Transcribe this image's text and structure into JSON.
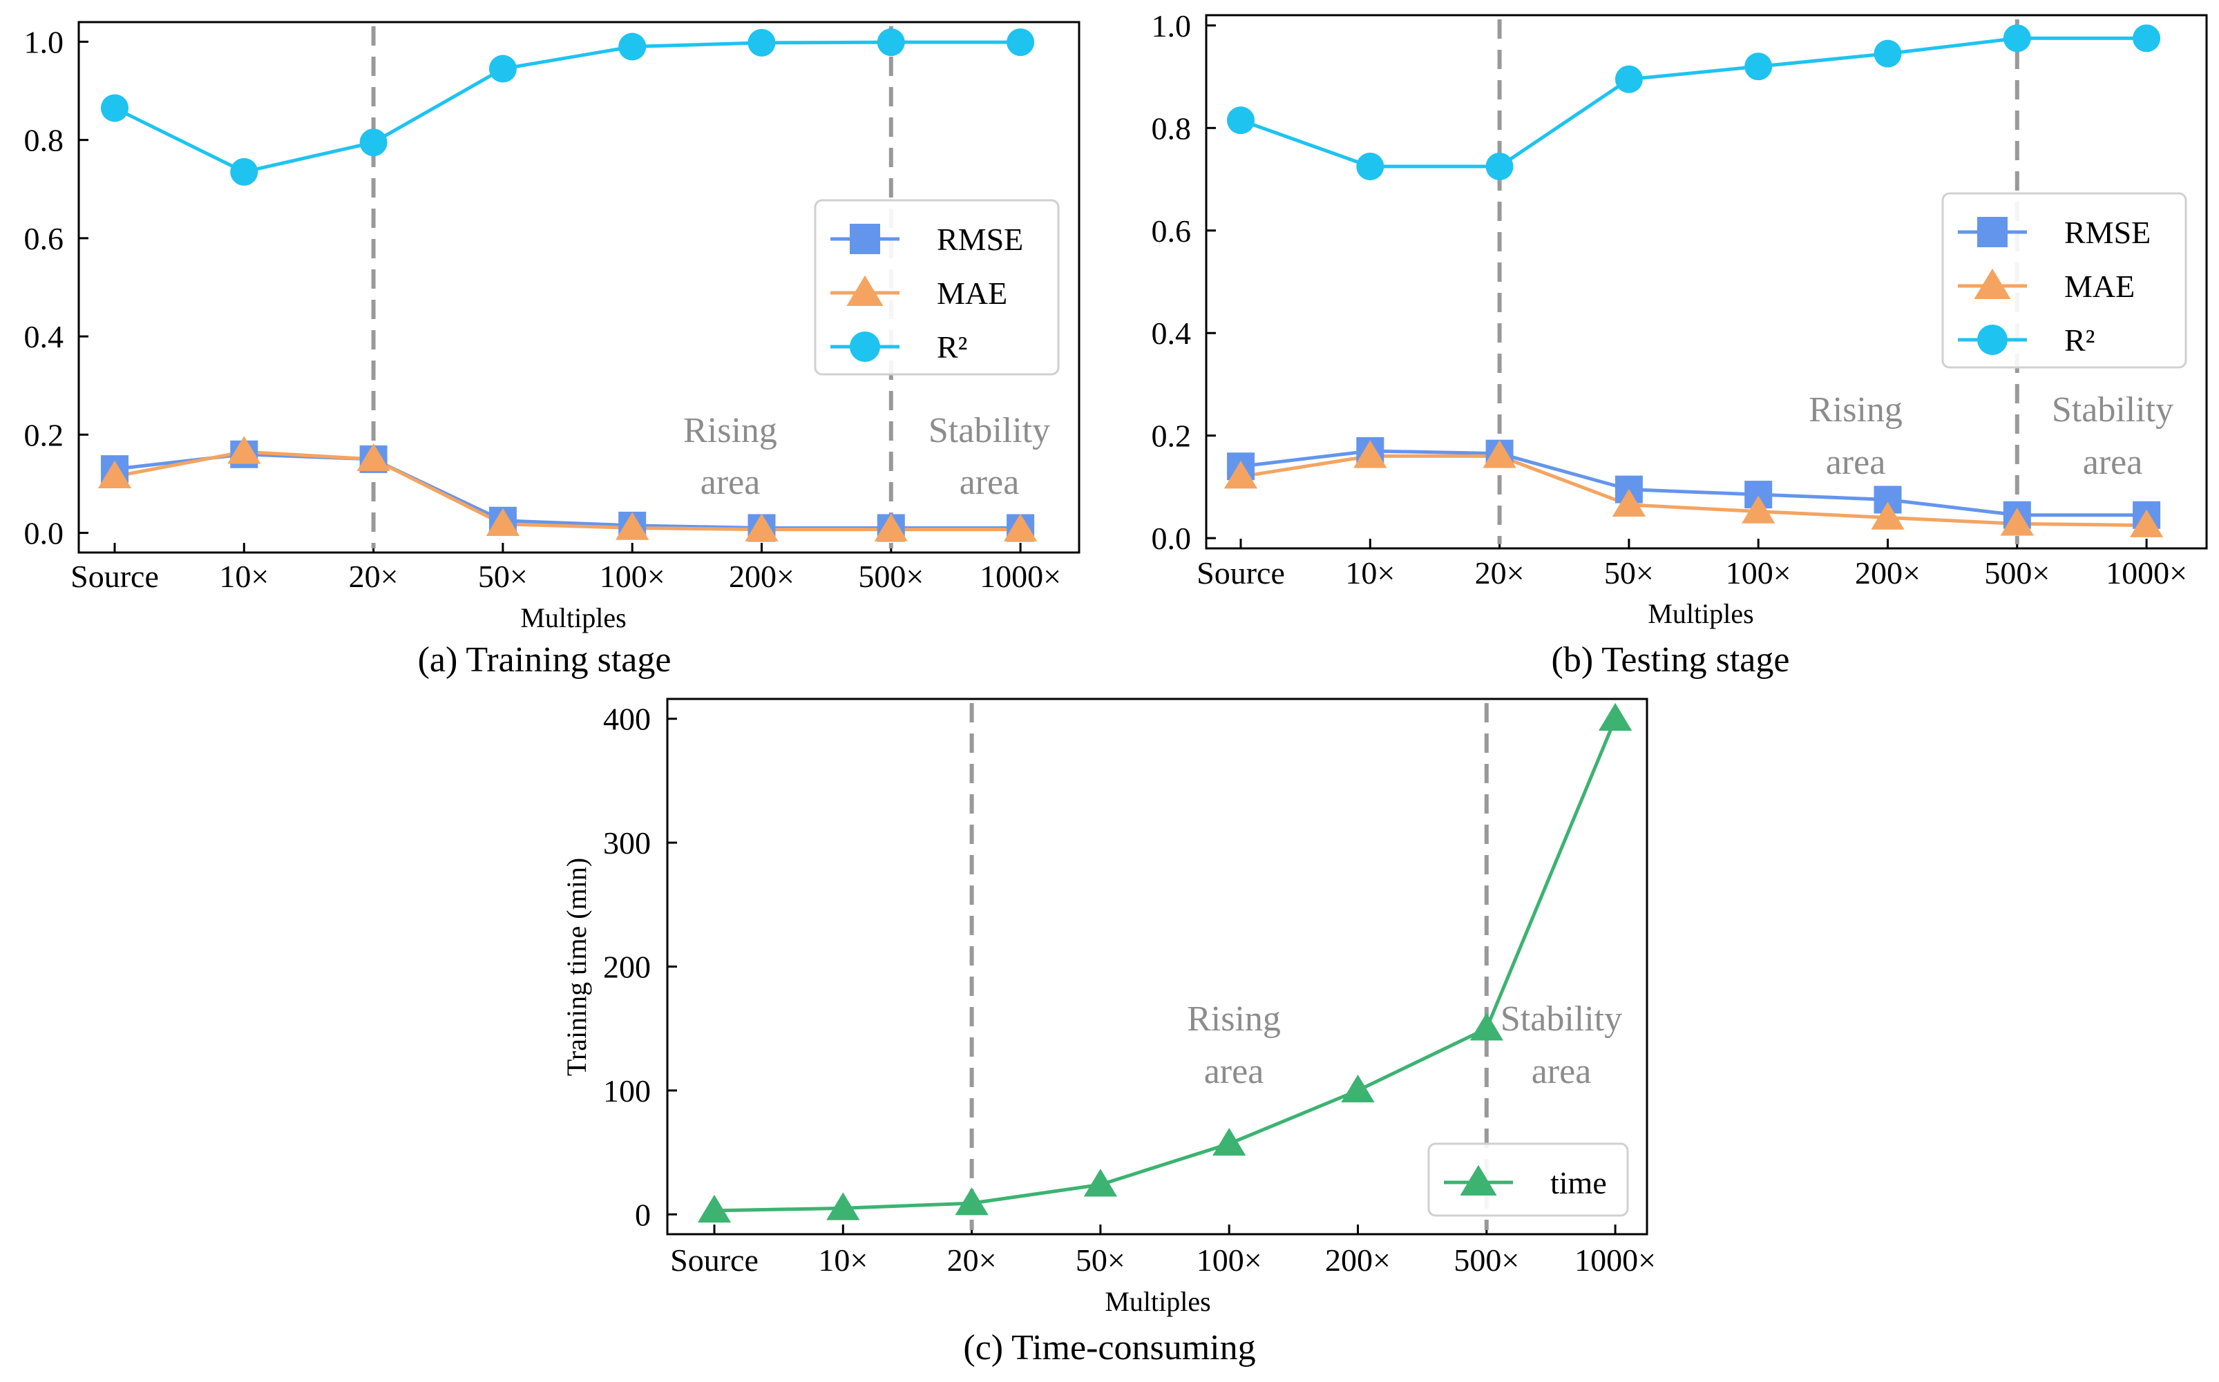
{
  "colors": {
    "rmse": "#6495ed",
    "mae": "#f4a460",
    "r2": "#1ec3f0",
    "time": "#3cb371",
    "divider": "#999999",
    "area_text": "#8c8c8c"
  },
  "chart_data": [
    {
      "id": "a",
      "type": "line",
      "caption": "(a) Training stage",
      "xlabel": "Multiples",
      "ylabel": "",
      "categories": [
        "Source",
        "10×",
        "20×",
        "50×",
        "100×",
        "200×",
        "500×",
        "1000×"
      ],
      "ylim": [
        -0.04,
        1.04
      ],
      "yticks": [
        "0.0",
        "0.2",
        "0.4",
        "0.6",
        "0.8",
        "1.0"
      ],
      "series": [
        {
          "name": "RMSE",
          "marker": "square",
          "values": [
            0.13,
            0.16,
            0.15,
            0.025,
            0.015,
            0.01,
            0.01,
            0.01
          ]
        },
        {
          "name": "MAE",
          "marker": "triangle",
          "values": [
            0.115,
            0.165,
            0.15,
            0.018,
            0.01,
            0.007,
            0.007,
            0.007
          ]
        },
        {
          "name": "R²",
          "marker": "circle",
          "values": [
            0.865,
            0.735,
            0.795,
            0.945,
            0.99,
            0.998,
            0.999,
            0.999
          ]
        }
      ],
      "dividers_at": [
        "20×",
        "500×"
      ],
      "legend_position": "center-right",
      "annotations": {
        "rising_line1": "Rising",
        "rising_line2": "area",
        "stability_line1": "Stability",
        "stability_line2": "area"
      }
    },
    {
      "id": "b",
      "type": "line",
      "caption": "(b) Testing stage",
      "xlabel": "Multiples",
      "ylabel": "",
      "categories": [
        "Source",
        "10×",
        "20×",
        "50×",
        "100×",
        "200×",
        "500×",
        "1000×"
      ],
      "ylim": [
        -0.02,
        1.02
      ],
      "yticks": [
        "0.0",
        "0.2",
        "0.4",
        "0.6",
        "0.8",
        "1.0"
      ],
      "series": [
        {
          "name": "RMSE",
          "marker": "square",
          "values": [
            0.14,
            0.17,
            0.165,
            0.095,
            0.085,
            0.075,
            0.045,
            0.045
          ]
        },
        {
          "name": "MAE",
          "marker": "triangle",
          "values": [
            0.12,
            0.16,
            0.16,
            0.065,
            0.052,
            0.04,
            0.028,
            0.025
          ]
        },
        {
          "name": "R²",
          "marker": "circle",
          "values": [
            0.815,
            0.725,
            0.725,
            0.895,
            0.92,
            0.945,
            0.975,
            0.975
          ]
        }
      ],
      "dividers_at": [
        "20×",
        "500×"
      ],
      "legend_position": "center-right",
      "annotations": {
        "rising_line1": "Rising",
        "rising_line2": "area",
        "stability_line1": "Stability",
        "stability_line2": "area"
      }
    },
    {
      "id": "c",
      "type": "line",
      "caption": "(c) Time-consuming",
      "xlabel": "Multiples",
      "ylabel": "Training time (min)",
      "categories": [
        "Source",
        "10×",
        "20×",
        "50×",
        "100×",
        "200×",
        "500×",
        "1000×"
      ],
      "ylim": [
        -16,
        416
      ],
      "yticks": [
        "0",
        "100",
        "200",
        "300",
        "400"
      ],
      "series": [
        {
          "name": "time",
          "marker": "triangle",
          "values": [
            3,
            5,
            9,
            24,
            57,
            100,
            150,
            400
          ]
        }
      ],
      "dividers_at": [
        "20×",
        "500×"
      ],
      "legend_position": "lower-right",
      "annotations": {
        "rising_line1": "Rising",
        "rising_line2": "area",
        "stability_line1": "Stability",
        "stability_line2": "area"
      }
    }
  ]
}
